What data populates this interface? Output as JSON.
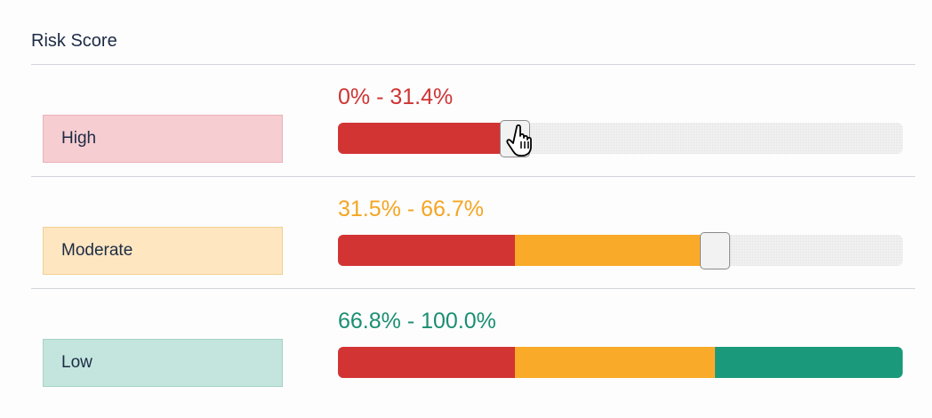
{
  "title": "Risk Score",
  "colors": {
    "high": "#d23434",
    "moderate": "#f9aa28",
    "low": "#1a9a7a"
  },
  "rows": [
    {
      "label": "High",
      "range": "0% - 31.4%",
      "range_color": "#cf3434",
      "box_bg": "#f6cdd1",
      "box_border": "#eab2b8",
      "fill_percent": 31.4,
      "handle": true,
      "cursor": true
    },
    {
      "label": "Moderate",
      "range": "31.5% - 66.7%",
      "range_color": "#f4a523",
      "box_bg": "#fde6c0",
      "box_border": "#f3cf94",
      "fill_percent": 66.7,
      "handle": true,
      "cursor": false
    },
    {
      "label": "Low",
      "range": "66.8% - 100.0%",
      "range_color": "#1a8f72",
      "box_bg": "#c3e5dd",
      "box_border": "#a5d3c7",
      "fill_percent": 100.0,
      "handle": false,
      "cursor": false
    }
  ]
}
